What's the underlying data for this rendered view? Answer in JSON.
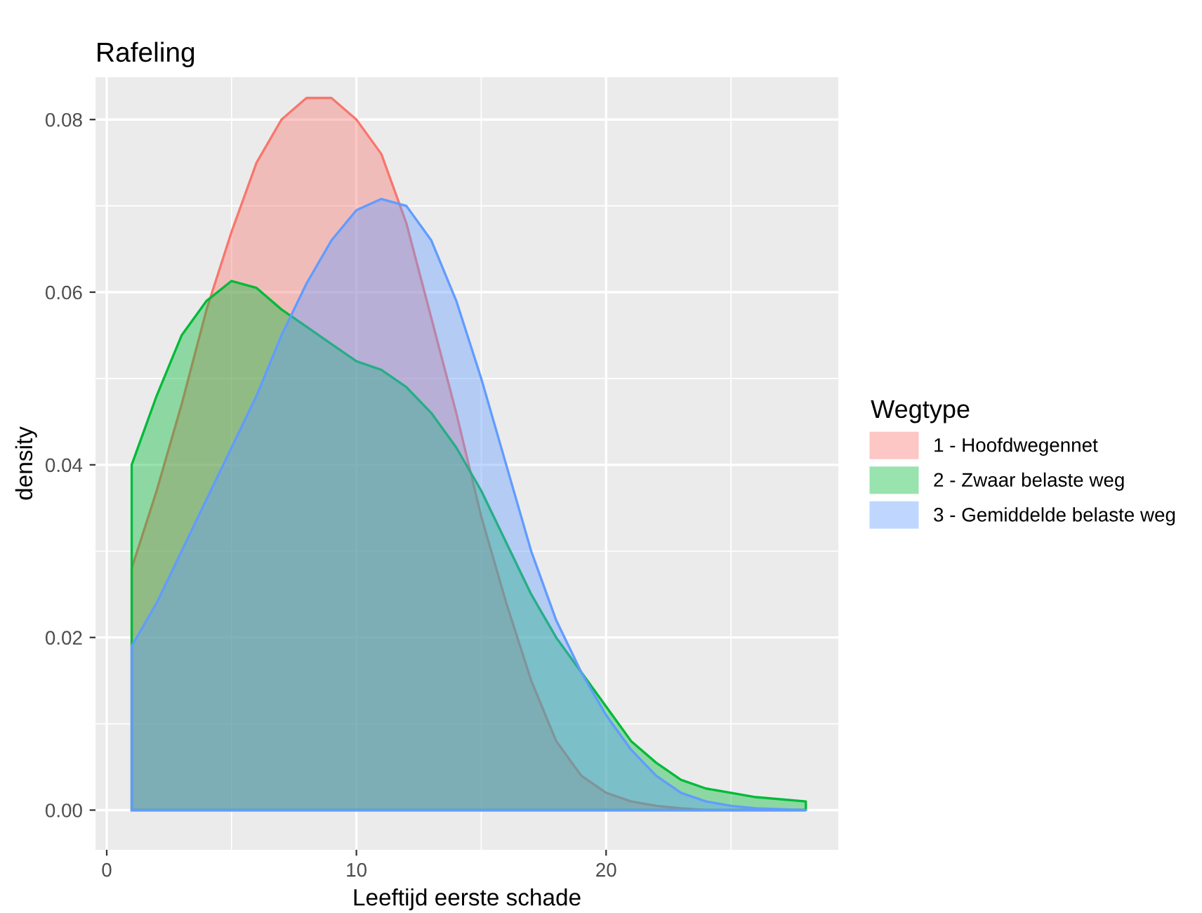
{
  "chart_data": {
    "type": "area",
    "title": "Rafeling",
    "xlabel": "Leeftijd eerste schade",
    "ylabel": "density",
    "legend_title": "Wegtype",
    "legend": "right",
    "grid": true,
    "xlim": [
      -0.45,
      29.3
    ],
    "ylim": [
      -0.0046,
      0.0849
    ],
    "xticks": [
      0,
      10,
      20
    ],
    "yticks": [
      {
        "value": 0,
        "label": "0.00"
      },
      {
        "value": 0.02,
        "label": "0.02"
      },
      {
        "value": 0.04,
        "label": "0.04"
      },
      {
        "value": 0.06,
        "label": "0.06"
      },
      {
        "value": 0.08,
        "label": "0.08"
      }
    ],
    "x": [
      1,
      2,
      3,
      4,
      5,
      6,
      7,
      8,
      9,
      10,
      11,
      12,
      13,
      14,
      15,
      16,
      17,
      18,
      19,
      20,
      21,
      22,
      23,
      24,
      25,
      26,
      28
    ],
    "series": [
      {
        "name": "1 - Hoofdwegennet",
        "color": "#F8766D",
        "values": [
          0.028,
          0.037,
          0.047,
          0.058,
          0.067,
          0.075,
          0.08,
          0.0825,
          0.0825,
          0.08,
          0.076,
          0.068,
          0.057,
          0.046,
          0.034,
          0.024,
          0.015,
          0.008,
          0.004,
          0.002,
          0.001,
          0.0005,
          0.0002,
          0,
          0,
          0,
          0
        ]
      },
      {
        "name": "2 - Zwaar belaste weg",
        "color": "#00BA38",
        "values": [
          0.04,
          0.048,
          0.055,
          0.059,
          0.0613,
          0.0605,
          0.058,
          0.056,
          0.054,
          0.052,
          0.051,
          0.049,
          0.046,
          0.042,
          0.037,
          0.031,
          0.025,
          0.02,
          0.016,
          0.012,
          0.008,
          0.0055,
          0.0035,
          0.0025,
          0.002,
          0.0015,
          0.001
        ]
      },
      {
        "name": "3 - Gemiddelde belaste weg",
        "color": "#619CFF",
        "values": [
          0.019,
          0.024,
          0.03,
          0.036,
          0.042,
          0.048,
          0.055,
          0.061,
          0.066,
          0.0695,
          0.0708,
          0.07,
          0.066,
          0.059,
          0.05,
          0.04,
          0.03,
          0.022,
          0.016,
          0.011,
          0.007,
          0.004,
          0.002,
          0.001,
          0.0005,
          0.0002,
          0
        ]
      }
    ]
  }
}
